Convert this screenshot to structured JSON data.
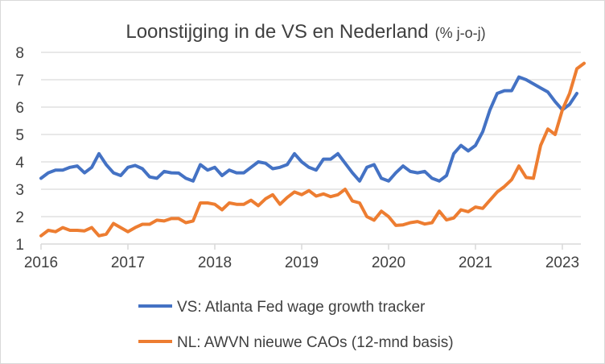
{
  "chart_data": {
    "type": "line",
    "title": "Loonstijging in de VS en Nederland",
    "title_unit": "(% j-o-j)",
    "xlabel": "",
    "ylabel": "",
    "ylim": [
      1,
      8
    ],
    "y_ticks": [
      "1",
      "2",
      "3",
      "4",
      "5",
      "6",
      "7",
      "8"
    ],
    "x_tick_labels": [
      "2016",
      "2017",
      "2018",
      "2019",
      "2020",
      "2021",
      "2023"
    ],
    "x_interval": "monthly",
    "grid": true,
    "legend_position": "bottom",
    "series": [
      {
        "name": "VS: Atlanta Fed wage growth tracker",
        "color": "#4472c4",
        "values": [
          3.4,
          3.6,
          3.7,
          3.7,
          3.8,
          3.85,
          3.6,
          3.8,
          4.3,
          3.9,
          3.6,
          3.5,
          3.8,
          3.87,
          3.75,
          3.45,
          3.4,
          3.65,
          3.6,
          3.59,
          3.4,
          3.3,
          3.9,
          3.7,
          3.8,
          3.5,
          3.7,
          3.6,
          3.6,
          3.8,
          4.0,
          3.95,
          3.75,
          3.8,
          3.9,
          4.3,
          4.0,
          3.8,
          3.7,
          4.1,
          4.1,
          4.3,
          3.95,
          3.6,
          3.3,
          3.8,
          3.9,
          3.4,
          3.3,
          3.6,
          3.85,
          3.65,
          3.6,
          3.65,
          3.4,
          3.3,
          3.5,
          4.3,
          4.6,
          4.4,
          4.6,
          5.1,
          5.9,
          6.5,
          6.6,
          6.6,
          7.1,
          7.0,
          6.85,
          6.7,
          6.55,
          6.2,
          5.9,
          6.1,
          6.5
        ]
      },
      {
        "name": "NL: AWVN nieuwe CAOs (12-mnd basis)",
        "color": "#ed7d31",
        "values": [
          1.3,
          1.5,
          1.45,
          1.6,
          1.5,
          1.5,
          1.48,
          1.6,
          1.3,
          1.36,
          1.75,
          1.6,
          1.45,
          1.6,
          1.72,
          1.72,
          1.87,
          1.84,
          1.93,
          1.93,
          1.78,
          1.84,
          2.5,
          2.5,
          2.45,
          2.25,
          2.5,
          2.45,
          2.45,
          2.6,
          2.4,
          2.65,
          2.8,
          2.45,
          2.7,
          2.9,
          2.8,
          2.95,
          2.75,
          2.83,
          2.73,
          2.8,
          3.0,
          2.57,
          2.5,
          2.0,
          1.87,
          2.2,
          2.0,
          1.68,
          1.7,
          1.78,
          1.82,
          1.73,
          1.78,
          2.2,
          1.88,
          1.95,
          2.25,
          2.18,
          2.35,
          2.3,
          2.6,
          2.9,
          3.1,
          3.35,
          3.85,
          3.43,
          3.4,
          4.6,
          5.2,
          5.0,
          5.9,
          6.5,
          7.4,
          7.6
        ]
      }
    ]
  }
}
